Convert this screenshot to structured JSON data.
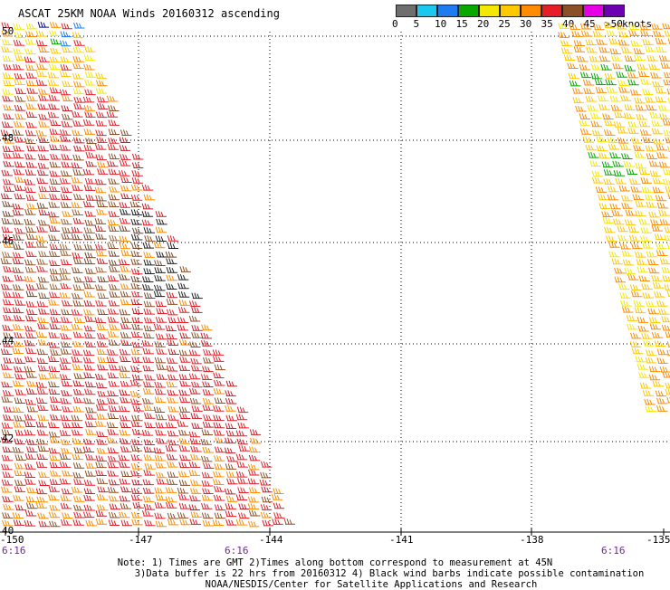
{
  "title": "ASCAT 25KM NOAA Winds 20160312 ascending",
  "legend": {
    "labels": [
      "0",
      "5",
      "10",
      "15",
      "20",
      "25",
      "30",
      "35",
      "40",
      "45",
      ">50"
    ],
    "unit": "knots",
    "colors": [
      "#6e6e6e",
      "#1cc8f0",
      "#1e7cf0",
      "#08a800",
      "#f5e800",
      "#ffc800",
      "#ff8c00",
      "#e61e28",
      "#8c5028",
      "#e600e6",
      "#6e00b4"
    ]
  },
  "axes": {
    "lat_labels": [
      "50",
      "48",
      "46",
      "44",
      "42",
      "40"
    ],
    "lon_labels": [
      "-150",
      "-147",
      "-144",
      "-141",
      "-138",
      "-135"
    ],
    "time_labels": [
      "6:16",
      "6:16",
      "6:16"
    ]
  },
  "notes": [
    "Note: 1) Times are GMT 2)Times along bottom correspond to measurement at 45N",
    "3)Data buffer is 22 hrs from 20160312 4) Black wind barbs indicate possible contamination",
    "NOAA/NESDIS/Center for Satellite Applications and Research"
  ],
  "chart_data": {
    "type": "map",
    "lon_range": [
      -150,
      -135
    ],
    "lat_range": [
      40,
      50
    ],
    "swaths": [
      {
        "name": "",
        "dominant_speed_knots": "30-40"
      },
      {
        "name": "",
        "dominant_speed_knots": "20-30"
      }
    ]
  }
}
